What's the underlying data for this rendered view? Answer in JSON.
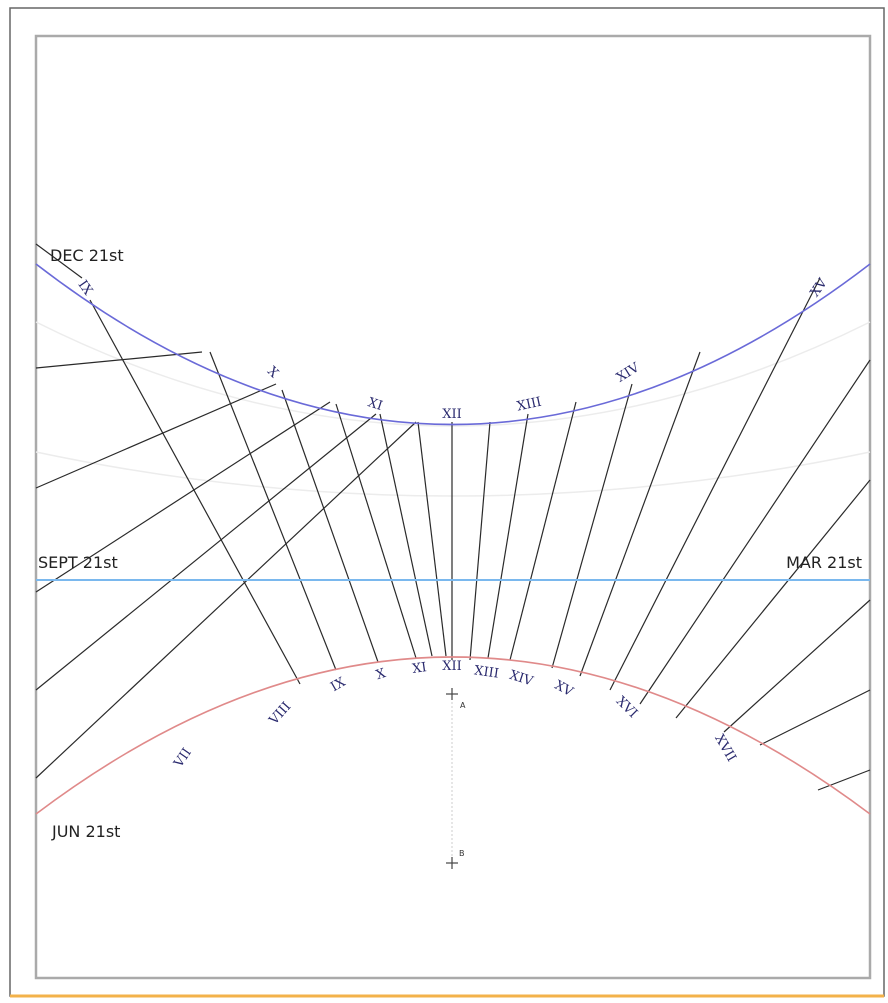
{
  "labels": {
    "dec": "DEC 21st",
    "sept": "SEPT 21st",
    "mar": "MAR 21st",
    "jun": "JUN 21st"
  },
  "points": {
    "a": "A",
    "b": "B"
  },
  "upper_hours": [
    "IX",
    "X",
    "XI",
    "XII",
    "XIII",
    "XIV",
    "XV"
  ],
  "lower_hours": [
    "VII",
    "VIII",
    "IX",
    "X",
    "XI",
    "XII",
    "XIII",
    "XIV",
    "XV",
    "XVI",
    "XVII"
  ],
  "colors": {
    "winter_curve": "#6a6ad8",
    "equinox_line": "#7ab8ee",
    "summer_curve": "#e08a8a",
    "hour_lines": "#2a2a2a",
    "numerals": "#2a2a6e",
    "border": "#999999",
    "bottom_edge": "#f3b24a"
  }
}
